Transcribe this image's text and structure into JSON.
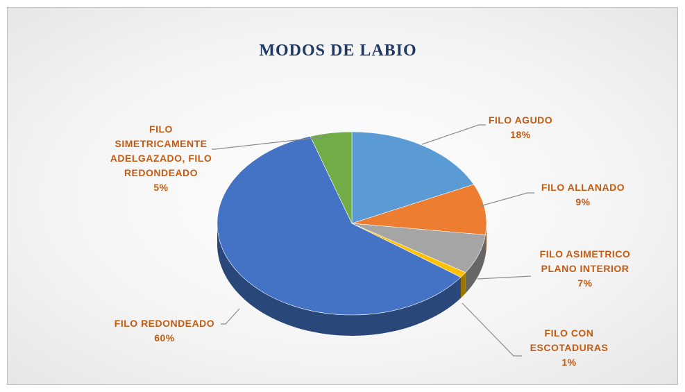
{
  "chart_data": {
    "type": "pie",
    "title": "MODOS DE LABIO",
    "categories": [
      "FILO AGUDO",
      "FILO ALLANADO",
      "FILO ASIMETRICO PLANO INTERIOR",
      "FILO CON ESCOTADURAS",
      "FILO REDONDEADO",
      "FILO SIMETRICAMENTE ADELGAZADO, FILO REDONDEADO"
    ],
    "values": [
      18,
      9,
      7,
      1,
      60,
      5
    ],
    "value_labels": [
      "18%",
      "9%",
      "7%",
      "1%",
      "60%",
      "5%"
    ],
    "colors": [
      "#5b9bd5",
      "#ed7d31",
      "#a5a5a5",
      "#ffc000",
      "#4472c4",
      "#70ad47"
    ]
  }
}
